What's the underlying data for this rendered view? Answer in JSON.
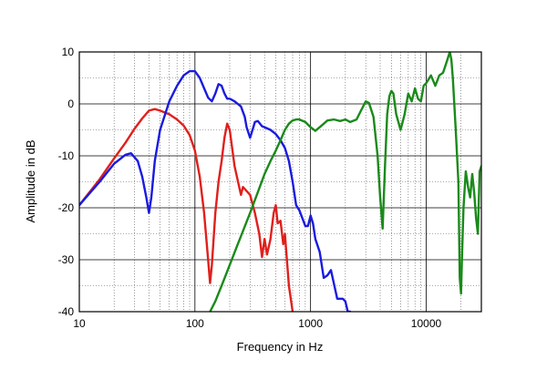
{
  "chart_data": {
    "type": "line",
    "title": "",
    "xlabel": "Frequency in Hz",
    "ylabel": "Amplitude in dB",
    "xscale": "log",
    "xlim": [
      10,
      30000
    ],
    "ylim": [
      -40,
      10
    ],
    "x_ticks": [
      10,
      100,
      1000,
      10000
    ],
    "x_tick_labels": [
      "10",
      "100",
      "1000",
      "10000"
    ],
    "y_ticks": [
      10,
      0,
      -10,
      -20,
      -30,
      -40
    ],
    "y_tick_labels": [
      "10",
      "0",
      "-10",
      "-20",
      "-30",
      "-40"
    ],
    "grid": true,
    "legend": "none",
    "series": [
      {
        "color": "#e0201c",
        "x": [
          10,
          15,
          20,
          25,
          30,
          35,
          40,
          45,
          50,
          60,
          70,
          80,
          90,
          100,
          110,
          120,
          130,
          135,
          140,
          150,
          160,
          170,
          180,
          190,
          200,
          220,
          250,
          260,
          300,
          330,
          360,
          380,
          400,
          420,
          450,
          480,
          500,
          520,
          550,
          580,
          600,
          650,
          700
        ],
        "y": [
          -19.5,
          -14.5,
          -10.5,
          -7.5,
          -4.8,
          -2.8,
          -1.3,
          -1.0,
          -1.3,
          -2.0,
          -3.0,
          -4.2,
          -6.0,
          -9.0,
          -14.0,
          -21.0,
          -30.0,
          -34.5,
          -31.0,
          -21.0,
          -15.0,
          -11.0,
          -6.5,
          -3.8,
          -5.0,
          -12.0,
          -17.5,
          -16.0,
          -17.5,
          -21.0,
          -25.0,
          -29.5,
          -26.0,
          -29.0,
          -26.0,
          -21.0,
          -19.5,
          -23.0,
          -22.5,
          -27.0,
          -25.0,
          -35.0,
          -40.0
        ]
      },
      {
        "color": "#1a1ae0",
        "x": [
          10,
          15,
          20,
          25,
          28,
          32,
          35,
          38,
          40,
          42,
          45,
          50,
          60,
          70,
          80,
          90,
          100,
          110,
          120,
          130,
          140,
          150,
          160,
          170,
          180,
          190,
          200,
          220,
          250,
          270,
          280,
          300,
          320,
          330,
          350,
          380,
          400,
          450,
          500,
          550,
          600,
          650,
          700,
          750,
          800,
          900,
          950,
          1000,
          1050,
          1100,
          1200,
          1300,
          1400,
          1500,
          1700,
          1900,
          2000,
          2100,
          2200
        ],
        "y": [
          -19.5,
          -15.0,
          -11.5,
          -9.8,
          -9.5,
          -11.0,
          -14.0,
          -18.0,
          -21.0,
          -18.0,
          -11.0,
          -5.0,
          0.5,
          3.5,
          5.5,
          6.3,
          6.3,
          5.0,
          3.0,
          1.2,
          0.5,
          2.0,
          3.8,
          3.5,
          2.0,
          1.0,
          1.0,
          0.5,
          -0.5,
          -2.5,
          -4.5,
          -6.5,
          -4.5,
          -3.5,
          -3.3,
          -4.3,
          -4.5,
          -5.0,
          -5.8,
          -7.0,
          -8.5,
          -11.0,
          -15.0,
          -19.5,
          -20.5,
          -23.5,
          -23.5,
          -21.5,
          -23.0,
          -26.0,
          -28.5,
          -33.5,
          -33.0,
          -32.0,
          -37.5,
          -37.5,
          -38.0,
          -40.0,
          -40.0
        ]
      },
      {
        "color": "#1a8a1a",
        "x": [
          135,
          150,
          170,
          200,
          230,
          260,
          300,
          350,
          400,
          450,
          500,
          550,
          600,
          650,
          700,
          750,
          800,
          900,
          1000,
          1100,
          1200,
          1400,
          1600,
          1800,
          2000,
          2200,
          2500,
          2700,
          3000,
          3200,
          3500,
          3800,
          4000,
          4200,
          4400,
          4600,
          4800,
          5000,
          5200,
          5500,
          6000,
          6500,
          7000,
          7500,
          8000,
          8500,
          9000,
          9500,
          10000,
          11000,
          12000,
          13000,
          14000,
          15000,
          16000,
          16500,
          17000,
          18000,
          19000,
          19500,
          20000,
          20500,
          21000,
          22000,
          23000,
          24000,
          25000,
          26000,
          27000,
          28000,
          29000,
          30000
        ],
        "y": [
          -40.0,
          -38.0,
          -35.0,
          -31.0,
          -27.5,
          -24.5,
          -21.0,
          -17.0,
          -13.5,
          -11.0,
          -9.0,
          -7.0,
          -5.0,
          -3.8,
          -3.2,
          -3.0,
          -3.0,
          -3.5,
          -4.5,
          -5.2,
          -4.5,
          -3.2,
          -3.0,
          -3.3,
          -3.0,
          -3.5,
          -3.0,
          -1.5,
          0.5,
          0.2,
          -2.5,
          -10.0,
          -18.0,
          -24.0,
          -12.0,
          -2.0,
          1.5,
          2.5,
          2.0,
          -2.0,
          -5.0,
          -2.0,
          2.0,
          0.5,
          3.0,
          1.0,
          0.5,
          3.5,
          4.0,
          5.5,
          3.5,
          5.5,
          6.0,
          8.0,
          10.0,
          8.5,
          5.0,
          -5.0,
          -15.0,
          -33.5,
          -36.5,
          -28.0,
          -20.0,
          -13.0,
          -16.0,
          -18.0,
          -13.5,
          -17.0,
          -22.0,
          -25.0,
          -13.0,
          -12.0
        ]
      }
    ]
  }
}
